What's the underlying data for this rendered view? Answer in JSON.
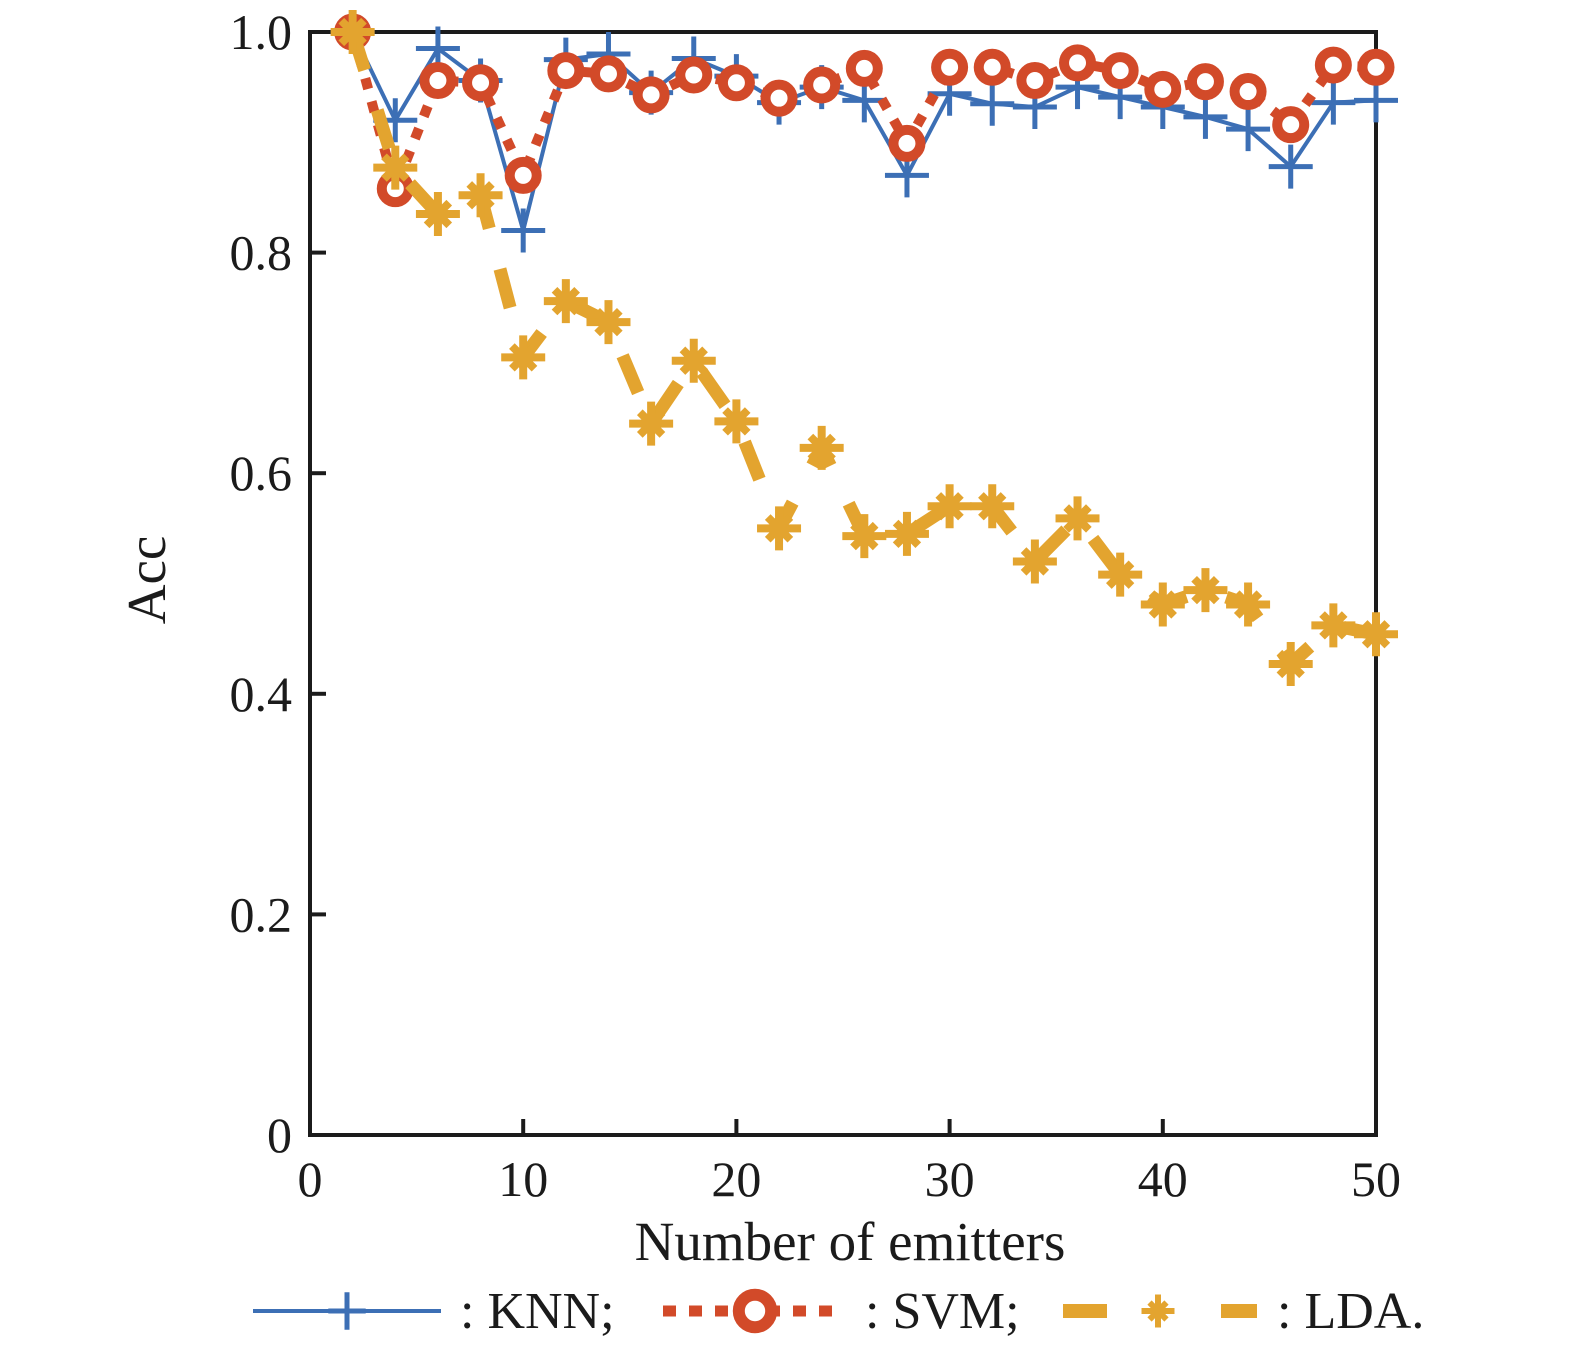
{
  "figure": {
    "background": "#ffffff",
    "axis_color": "#1b1b1b"
  },
  "chart_data": {
    "type": "line",
    "title": "",
    "xlabel": "Number of emitters",
    "ylabel": "Acc",
    "xlim": [
      0,
      50
    ],
    "ylim": [
      0,
      1
    ],
    "grid": false,
    "legend_position": "below",
    "x_ticks": [
      0,
      10,
      20,
      30,
      40,
      50
    ],
    "x_tick_labels": [
      "0",
      "10",
      "20",
      "30",
      "40",
      "50"
    ],
    "y_ticks": [
      0,
      0.2,
      0.4,
      0.6,
      0.8,
      1
    ],
    "y_tick_labels": [
      "0",
      "0.2",
      "0.4",
      "0.6",
      "0.8",
      "1.0"
    ],
    "x": [
      2,
      4,
      6,
      8,
      10,
      12,
      14,
      16,
      18,
      20,
      22,
      24,
      26,
      28,
      30,
      32,
      34,
      36,
      38,
      40,
      42,
      44,
      46,
      48,
      50
    ],
    "series": [
      {
        "name": "KNN",
        "legend_label": ": KNN;",
        "color": "#3c6fb5",
        "line_style": "solid",
        "marker": "plus",
        "values": [
          1.0,
          0.92,
          0.985,
          0.956,
          0.82,
          0.975,
          0.98,
          0.945,
          0.976,
          0.96,
          0.936,
          0.95,
          0.938,
          0.87,
          0.944,
          0.935,
          0.932,
          0.95,
          0.941,
          0.932,
          0.923,
          0.912,
          0.878,
          0.936,
          0.938
        ]
      },
      {
        "name": "SVM",
        "legend_label": ": SVM;",
        "color": "#d24a29",
        "line_style": "dotted",
        "marker": "open-circle",
        "values": [
          1.0,
          0.858,
          0.956,
          0.954,
          0.87,
          0.965,
          0.962,
          0.943,
          0.961,
          0.954,
          0.94,
          0.952,
          0.967,
          0.899,
          0.968,
          0.968,
          0.956,
          0.972,
          0.965,
          0.948,
          0.955,
          0.946,
          0.916,
          0.97,
          0.968
        ]
      },
      {
        "name": "LDA",
        "legend_label": ": LDA.",
        "color": "#e3a42f",
        "line_style": "dashed",
        "marker": "asterisk",
        "values": [
          1.0,
          0.877,
          0.835,
          0.852,
          0.705,
          0.756,
          0.737,
          0.645,
          0.702,
          0.647,
          0.55,
          0.623,
          0.543,
          0.545,
          0.57,
          0.57,
          0.52,
          0.559,
          0.508,
          0.481,
          0.494,
          0.481,
          0.427,
          0.462,
          0.454
        ]
      }
    ]
  }
}
